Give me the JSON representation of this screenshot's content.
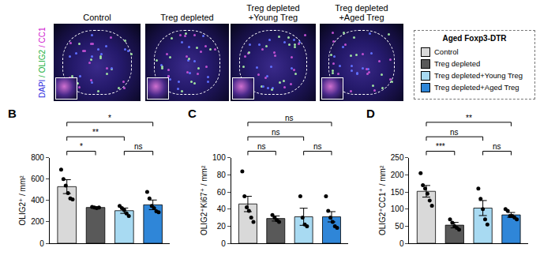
{
  "panel_a": {
    "stain_labels": [
      "DAPI",
      "OLIG2",
      "CC1"
    ],
    "stain_colors": [
      "#3030e0",
      "#20b040",
      "#d020d0"
    ],
    "stain_separator": " / ",
    "image_titles": [
      "Control",
      "Treg depleted",
      "Treg depleted\n+Young Treg",
      "Treg depleted\n+Aged Treg"
    ]
  },
  "legend_title": "Aged Foxp3-DTR",
  "chart_data": [
    {
      "type": "bar",
      "title": "B",
      "ylabel": "OLIG2⁺ / mm²",
      "categories": [
        "Control",
        "Treg depleted",
        "Treg depleted+Young Treg",
        "Treg depleted+Aged Treg"
      ],
      "colors": [
        "#d9d9d9",
        "#595959",
        "#a8daf2",
        "#2f86d8"
      ],
      "values": [
        530,
        335,
        305,
        360
      ],
      "error": [
        65,
        5,
        25,
        45
      ],
      "points": [
        [
          690,
          600,
          540,
          470,
          420,
          410
        ],
        [
          340,
          335,
          330,
          335
        ],
        [
          350,
          330,
          310,
          280,
          255
        ],
        [
          480,
          420,
          350,
          330,
          300,
          290
        ]
      ],
      "comparisons": [
        {
          "pair": [
            0,
            1
          ],
          "label": "*"
        },
        {
          "pair": [
            2,
            3
          ],
          "label": "ns"
        },
        {
          "pair": [
            0,
            2
          ],
          "label": "**"
        },
        {
          "pair": [
            0,
            3
          ],
          "label": "*"
        }
      ],
      "ylim": [
        0,
        800
      ],
      "yticks": [
        0,
        200,
        400,
        600,
        800
      ],
      "grid": false,
      "tick_labels": "y"
    },
    {
      "type": "bar",
      "title": "C",
      "ylabel": "OLIG2⁺Ki67⁺ / mm²",
      "categories": [
        "Control",
        "Treg depleted",
        "Treg depleted+Young Treg",
        "Treg depleted+Aged Treg"
      ],
      "colors": [
        "#d9d9d9",
        "#595959",
        "#a8daf2",
        "#2f86d8"
      ],
      "values": [
        46,
        29,
        31,
        31
      ],
      "error": [
        9,
        3,
        10,
        6
      ],
      "points": [
        [
          84,
          55,
          42,
          38,
          30,
          25
        ],
        [
          33,
          30,
          27,
          25
        ],
        [
          55,
          30,
          22,
          20
        ],
        [
          55,
          38,
          30,
          25,
          20,
          18
        ]
      ],
      "comparisons": [
        {
          "pair": [
            0,
            1
          ],
          "label": "ns"
        },
        {
          "pair": [
            2,
            3
          ],
          "label": "ns"
        },
        {
          "pair": [
            0,
            2
          ],
          "label": "ns"
        },
        {
          "pair": [
            0,
            3
          ],
          "label": "ns"
        }
      ],
      "ylim": [
        0,
        100
      ],
      "yticks": [
        0,
        20,
        40,
        60,
        80,
        100
      ],
      "grid": false,
      "tick_labels": "y"
    },
    {
      "type": "bar",
      "title": "D",
      "ylabel": "OLIG2⁺CC1⁺ / mm²",
      "categories": [
        "Control",
        "Treg depleted",
        "Treg depleted+Young Treg",
        "Treg depleted+Aged Treg"
      ],
      "colors": [
        "#d9d9d9",
        "#595959",
        "#a8daf2",
        "#2f86d8"
      ],
      "values": [
        152,
        53,
        103,
        83
      ],
      "error": [
        17,
        8,
        22,
        7
      ],
      "points": [
        [
          205,
          170,
          160,
          145,
          125,
          110
        ],
        [
          70,
          60,
          50,
          45,
          40
        ],
        [
          160,
          130,
          100,
          70,
          55
        ],
        [
          100,
          95,
          80,
          80,
          75,
          70
        ]
      ],
      "comparisons": [
        {
          "pair": [
            0,
            1
          ],
          "label": "***"
        },
        {
          "pair": [
            2,
            3
          ],
          "label": "ns"
        },
        {
          "pair": [
            0,
            2
          ],
          "label": "ns"
        },
        {
          "pair": [
            0,
            3
          ],
          "label": "**"
        }
      ],
      "ylim": [
        0,
        250
      ],
      "yticks": [
        0,
        50,
        100,
        150,
        200,
        250
      ],
      "grid": false,
      "tick_labels": "y"
    }
  ]
}
